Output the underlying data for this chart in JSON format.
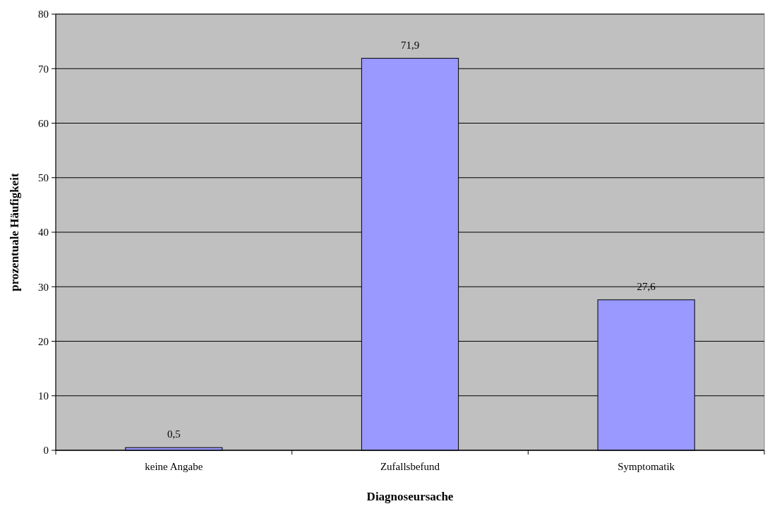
{
  "chart_data": {
    "type": "bar",
    "xlabel": "Diagnoseursache",
    "ylabel": "prozentuale Häufigkeit",
    "categories": [
      "keine Angabe",
      "Zufallsbefund",
      "Symptomatik"
    ],
    "values": [
      0.5,
      71.9,
      27.6
    ],
    "value_labels": [
      "0,5",
      "71,9",
      "27,6"
    ],
    "color": "#9999ff",
    "ylim": [
      0,
      80
    ],
    "yticks": [
      0,
      10,
      20,
      30,
      40,
      50,
      60,
      70,
      80
    ],
    "grid": "y"
  }
}
